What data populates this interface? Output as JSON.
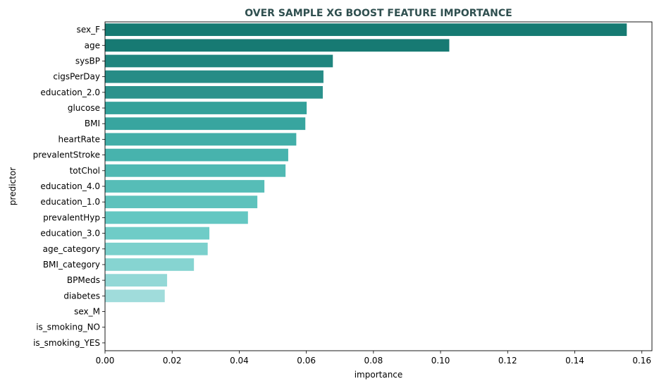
{
  "chart_data": {
    "type": "bar",
    "orientation": "horizontal",
    "title": "OVER SAMPLE XG BOOST FEATURE IMPORTANCE",
    "xlabel": "importance",
    "ylabel": "predictor",
    "xlim": [
      0,
      0.163
    ],
    "xticks": [
      0.0,
      0.02,
      0.04,
      0.06,
      0.08,
      0.1,
      0.12,
      0.14,
      0.16
    ],
    "xtick_labels": [
      "0.00",
      "0.02",
      "0.04",
      "0.06",
      "0.08",
      "0.10",
      "0.12",
      "0.14",
      "0.16"
    ],
    "grid": false,
    "categories": [
      "sex_F",
      "age",
      "sysBP",
      "cigsPerDay",
      "education_2.0",
      "glucose",
      "BMI",
      "heartRate",
      "prevalentStroke",
      "totChol",
      "education_4.0",
      "education_1.0",
      "prevalentHyp",
      "education_3.0",
      "age_category",
      "BMI_category",
      "BPMeds",
      "diabetes",
      "sex_M",
      "is_smoking_NO",
      "is_smoking_YES"
    ],
    "values": [
      0.1555,
      0.1026,
      0.0679,
      0.0651,
      0.0649,
      0.0601,
      0.0597,
      0.057,
      0.0546,
      0.0538,
      0.0475,
      0.0454,
      0.0426,
      0.0311,
      0.0306,
      0.0265,
      0.0185,
      0.0178,
      0.0,
      0.0,
      0.0
    ],
    "colors": [
      "#167a72",
      "#177a73",
      "#1f857e",
      "#268c86",
      "#2b928c",
      "#33a19a",
      "#38a59f",
      "#42aea8",
      "#47b3ad",
      "#50b9b3",
      "#56bdb7",
      "#5dc2bc",
      "#64c7c2",
      "#6fccc7",
      "#7bd0cc",
      "#86d4d1",
      "#93d8d6",
      "#a0dcdb",
      "#aee0e0",
      "#bce4e4",
      "#c8e8e8"
    ]
  }
}
